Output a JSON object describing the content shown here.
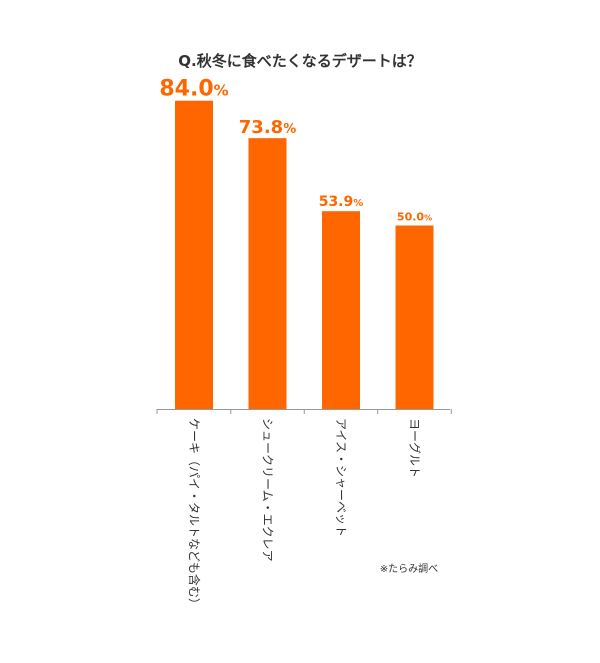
{
  "chart_data": {
    "type": "bar",
    "title": "Q.秋冬に食べたくなるデザートは？",
    "categories": [
      "ケーキ（パイ・タルトなども含む）",
      "シュークリーム・エクレア",
      "アイス・シャーベット",
      "ヨーグルト"
    ],
    "values": [
      84.0,
      73.8,
      53.9,
      50.0
    ],
    "value_labels": [
      "84.0",
      "73.8",
      "53.9",
      "50.0"
    ],
    "unit": "%",
    "ylim": [
      0,
      100
    ],
    "xlabel": "",
    "ylabel": "",
    "grid": false,
    "legend": "none",
    "bar_color": "#ff6600",
    "label_color": "#ff6600",
    "axis_color": "#999999"
  },
  "source_note": "※たらみ調べ"
}
